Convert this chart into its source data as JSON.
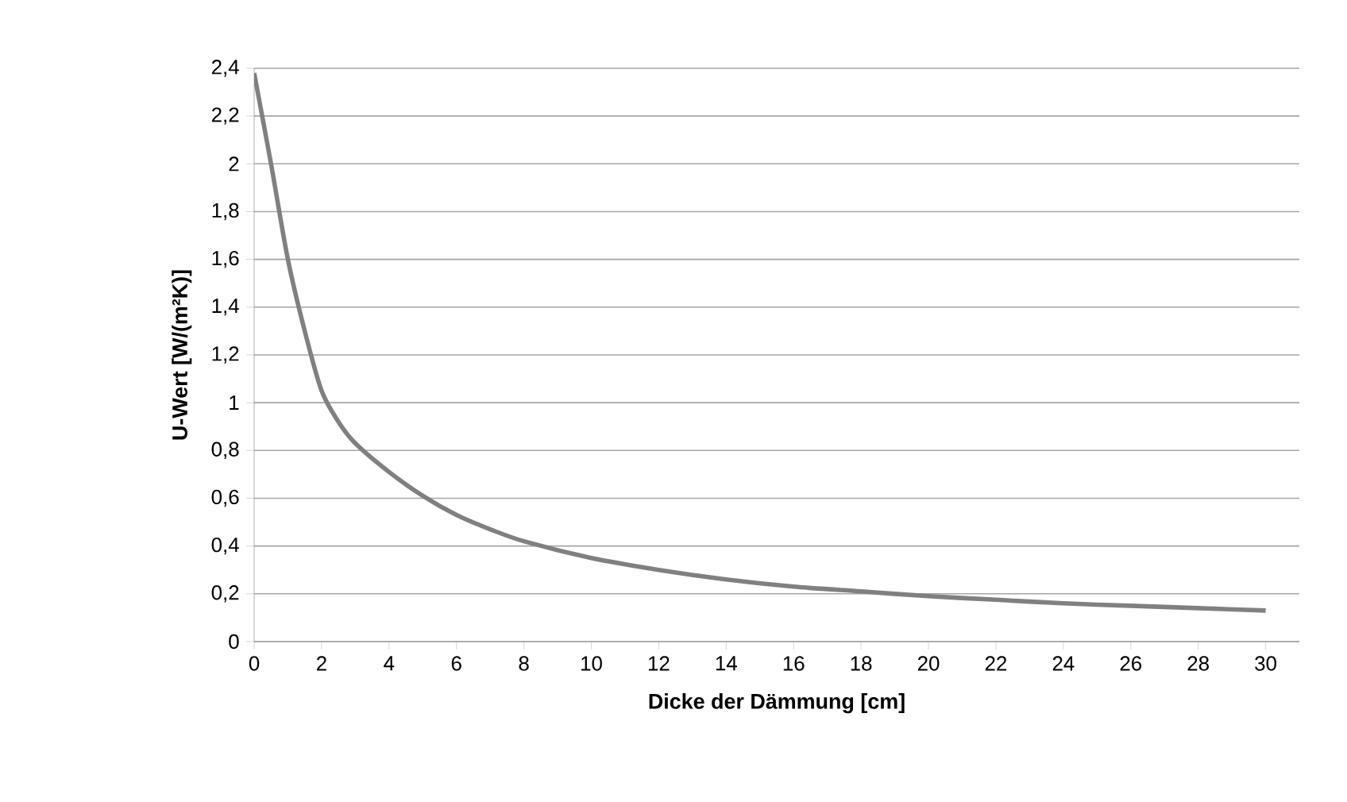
{
  "chart_data": {
    "type": "line",
    "xlabel": "Dicke der Dämmung [cm]",
    "ylabel": "U-Wert  [W/(m²K)]",
    "x": [
      0,
      0.5,
      1,
      1.5,
      2,
      2.5,
      3,
      4,
      5,
      6,
      7,
      8,
      10,
      12,
      14,
      16,
      18,
      20,
      22,
      24,
      26,
      28,
      30
    ],
    "series": [
      {
        "color": "#808080",
        "values": [
          2.38,
          2.0,
          1.6,
          1.3,
          1.05,
          0.92,
          0.83,
          0.71,
          0.61,
          0.53,
          0.47,
          0.42,
          0.35,
          0.3,
          0.26,
          0.23,
          0.21,
          0.19,
          0.175,
          0.16,
          0.15,
          0.14,
          0.13
        ]
      }
    ],
    "xlim": [
      0,
      31
    ],
    "ylim": [
      0,
      2.4
    ],
    "xticks": [
      0,
      2,
      4,
      6,
      8,
      10,
      12,
      14,
      16,
      18,
      20,
      22,
      24,
      26,
      28,
      30
    ],
    "yticks": [
      0,
      {
        "value": 0.2,
        "label": "0,2"
      },
      {
        "value": 0.4,
        "label": "0,4"
      },
      {
        "value": 0.6,
        "label": "0,6"
      },
      {
        "value": 0.8,
        "label": "0,8"
      },
      1,
      {
        "value": 1.2,
        "label": "1,2"
      },
      {
        "value": 1.4,
        "label": "1,4"
      },
      {
        "value": 1.6,
        "label": "1,6"
      },
      {
        "value": 1.8,
        "label": "1,8"
      },
      2,
      {
        "value": 2.2,
        "label": "2,2"
      },
      {
        "value": 2.4,
        "label": "2,4"
      }
    ],
    "grid": "y",
    "marker": "none",
    "line_style": "solid"
  }
}
